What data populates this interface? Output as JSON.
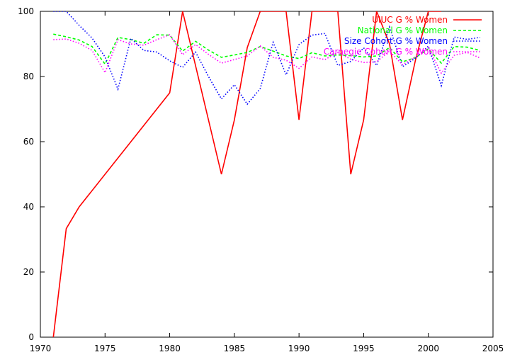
{
  "chart_data": {
    "type": "line",
    "title": "",
    "xlabel": "",
    "ylabel": "",
    "xlim": [
      1970,
      2005
    ],
    "ylim": [
      0,
      100
    ],
    "xticks": [
      1970,
      1975,
      1980,
      1985,
      1990,
      1995,
      2000,
      2005
    ],
    "yticks": [
      0,
      20,
      40,
      60,
      80,
      100
    ],
    "grid": false,
    "legend_position": "top-right",
    "series": [
      {
        "name": "UIUC G % Women",
        "color": "#ff0000",
        "dash": "solid",
        "points": [
          [
            1971,
            0
          ],
          [
            1972,
            33.3
          ],
          [
            1973,
            40
          ],
          [
            1980,
            75
          ],
          [
            1981,
            100
          ],
          [
            1984,
            50
          ],
          [
            1985,
            66.7
          ],
          [
            1986,
            88.9
          ],
          [
            1987,
            100
          ],
          [
            1989,
            100
          ],
          [
            1990,
            66.7
          ],
          [
            1991,
            100
          ],
          [
            1993,
            100
          ],
          [
            1994,
            50
          ],
          [
            1995,
            66.7
          ],
          [
            1996,
            100
          ],
          [
            1997,
            90
          ],
          [
            1998,
            66.7
          ],
          [
            1999,
            85
          ],
          [
            2000,
            100
          ],
          [
            2001,
            100
          ]
        ]
      },
      {
        "name": "National G % Women",
        "color": "#00ff00",
        "dash": "dashed",
        "points": [
          [
            1971,
            93
          ],
          [
            1972,
            92.2
          ],
          [
            1973,
            91.2
          ],
          [
            1974,
            89.2
          ],
          [
            1975,
            83.8
          ],
          [
            1976,
            92
          ],
          [
            1977,
            91.3
          ],
          [
            1978,
            90.2
          ],
          [
            1979,
            92.8
          ],
          [
            1980,
            92.7
          ],
          [
            1981,
            87.8
          ],
          [
            1982,
            90.8
          ],
          [
            1983,
            88.1
          ],
          [
            1984,
            85.9
          ],
          [
            1985,
            86.6
          ],
          [
            1986,
            87.4
          ],
          [
            1987,
            89.2
          ],
          [
            1988,
            87.8
          ],
          [
            1989,
            86.3
          ],
          [
            1990,
            85.5
          ],
          [
            1991,
            87.3
          ],
          [
            1992,
            86.3
          ],
          [
            1993,
            86.6
          ],
          [
            1994,
            86.4
          ],
          [
            1995,
            86
          ],
          [
            1996,
            86.3
          ],
          [
            1997,
            88.9
          ],
          [
            1998,
            84.5
          ],
          [
            1999,
            85.8
          ],
          [
            2000,
            88.5
          ],
          [
            2001,
            84.1
          ],
          [
            2002,
            89.2
          ],
          [
            2003,
            89
          ],
          [
            2004,
            88
          ]
        ]
      },
      {
        "name": "Size Cohort G % Women",
        "color": "#0000ff",
        "dash": "dotted",
        "points": [
          [
            1971,
            100
          ],
          [
            1972,
            100
          ],
          [
            1973,
            95.7
          ],
          [
            1974,
            91.8
          ],
          [
            1975,
            86
          ],
          [
            1976,
            76.1
          ],
          [
            1977,
            91.7
          ],
          [
            1978,
            88
          ],
          [
            1979,
            87.5
          ],
          [
            1980,
            84.8
          ],
          [
            1981,
            82.8
          ],
          [
            1982,
            87.5
          ],
          [
            1983,
            80
          ],
          [
            1984,
            73.1
          ],
          [
            1985,
            77.5
          ],
          [
            1986,
            71.5
          ],
          [
            1987,
            76.3
          ],
          [
            1988,
            90.5
          ],
          [
            1989,
            80.5
          ],
          [
            1990,
            89.8
          ],
          [
            1991,
            92.7
          ],
          [
            1992,
            93.2
          ],
          [
            1993,
            83.4
          ],
          [
            1994,
            84.6
          ],
          [
            1995,
            88.8
          ],
          [
            1996,
            83.4
          ],
          [
            1997,
            95.2
          ],
          [
            1998,
            83
          ],
          [
            1999,
            85.6
          ],
          [
            2000,
            89.3
          ],
          [
            2001,
            77.2
          ],
          [
            2002,
            92.1
          ],
          [
            2003,
            91.4
          ],
          [
            2004,
            92
          ]
        ]
      },
      {
        "name": "Carnegie Cohort G % Women",
        "color": "#ff00ff",
        "dash": "dotted",
        "points": [
          [
            1971,
            91.3
          ],
          [
            1972,
            91.5
          ],
          [
            1973,
            90.2
          ],
          [
            1974,
            88
          ],
          [
            1975,
            81.2
          ],
          [
            1976,
            91.3
          ],
          [
            1977,
            90
          ],
          [
            1978,
            89.6
          ],
          [
            1979,
            91.3
          ],
          [
            1980,
            92.8
          ],
          [
            1981,
            86.7
          ],
          [
            1982,
            89.8
          ],
          [
            1983,
            86.8
          ],
          [
            1984,
            84.1
          ],
          [
            1985,
            85.2
          ],
          [
            1986,
            86.3
          ],
          [
            1987,
            89.4
          ],
          [
            1988,
            85.9
          ],
          [
            1989,
            85
          ],
          [
            1990,
            82.5
          ],
          [
            1991,
            86
          ],
          [
            1992,
            85.2
          ],
          [
            1993,
            87.4
          ],
          [
            1994,
            85.3
          ],
          [
            1995,
            84.3
          ],
          [
            1996,
            84.5
          ],
          [
            1997,
            87.8
          ],
          [
            1998,
            83.6
          ],
          [
            1999,
            86
          ],
          [
            2000,
            88.9
          ],
          [
            2001,
            81
          ],
          [
            2002,
            86.5
          ],
          [
            2003,
            87.4
          ],
          [
            2004,
            85.7
          ]
        ]
      }
    ]
  }
}
